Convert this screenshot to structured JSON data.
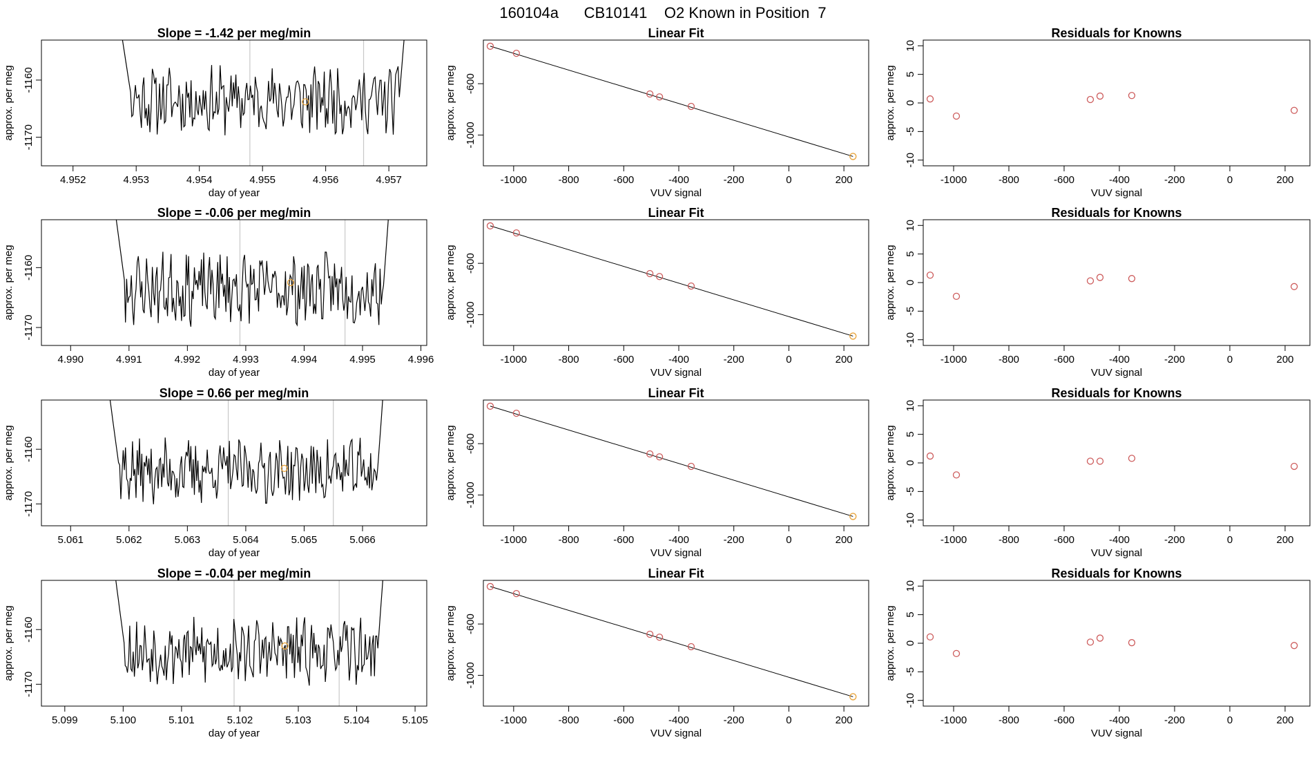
{
  "page_title": "160104a      CB10141    O2 Known in Position  7",
  "colors": {
    "trace": "#000000",
    "marker_orange": "#e8a33a",
    "point_red": "#cd5c5c",
    "vline": "#c8c8c8",
    "fit_line": "#000000"
  },
  "chart_data": [
    {
      "type": "line",
      "title": "Slope =  -1.42  per meg/min",
      "xlabel": "day of year",
      "ylabel": "approx. per meg",
      "xlim": [
        4.9515,
        4.9576
      ],
      "ylim": [
        -1175,
        -1153
      ],
      "xticks": [
        "4.952",
        "4.953",
        "4.954",
        "4.955",
        "4.956",
        "4.957"
      ],
      "xtick_values": [
        4.952,
        4.953,
        4.954,
        4.955,
        4.956,
        4.957
      ],
      "yticks": [
        "-1160",
        "-1170"
      ],
      "ytick_values": [
        -1160,
        -1170
      ],
      "x_start": 4.9527,
      "x_end": 4.9573,
      "baseline": -1163.5,
      "seed": 11,
      "vlines": [
        4.9548,
        4.9566
      ],
      "marker": {
        "x": 4.95568,
        "y": -1163.8
      }
    },
    {
      "type": "scatter",
      "title": "Linear Fit",
      "xlabel": "VUV signal",
      "ylabel": "approx. per meg",
      "xlim": [
        -1110,
        290
      ],
      "ylim": [
        -1240,
        -260
      ],
      "xticks": [
        "-1000",
        "-800",
        "-600",
        "-400",
        "-200",
        "0",
        "200"
      ],
      "xtick_values": [
        -1000,
        -800,
        -600,
        -400,
        -200,
        0,
        200
      ],
      "yticks": [
        "-600",
        "-1000"
      ],
      "ytick_values": [
        -600,
        -1000
      ],
      "points_x": [
        -1085,
        -990,
        -505,
        -470,
        -355
      ],
      "points_y": [
        -308,
        -363,
        -680,
        -703,
        -777
      ],
      "highlight": {
        "x": 233,
        "y": -1167
      },
      "fit_line": {
        "x1": -1085,
        "y1": -308,
        "x2": 233,
        "y2": -1167
      }
    },
    {
      "type": "scatter",
      "title": "Residuals for Knowns",
      "xlabel": "VUV signal",
      "ylabel": "approx. per meg",
      "xlim": [
        -1110,
        290
      ],
      "ylim": [
        -11,
        11
      ],
      "xticks": [
        "-1000",
        "-800",
        "-600",
        "-400",
        "-200",
        "0",
        "200"
      ],
      "xtick_values": [
        -1000,
        -800,
        -600,
        -400,
        -200,
        0,
        200
      ],
      "yticks": [
        "10",
        "5",
        "0",
        "-5",
        "-10"
      ],
      "ytick_values": [
        10,
        5,
        0,
        -5,
        -10
      ],
      "points_x": [
        -1085,
        -990,
        -505,
        -470,
        -355,
        233
      ],
      "points_y": [
        0.7,
        -2.3,
        0.6,
        1.2,
        1.3,
        -1.3
      ]
    },
    {
      "type": "line",
      "title": "Slope =  -0.06  per meg/min",
      "xlabel": "day of year",
      "ylabel": "approx. per meg",
      "xlim": [
        4.9895,
        4.9961
      ],
      "ylim": [
        -1173,
        -1152
      ],
      "xticks": [
        "4.990",
        "4.991",
        "4.992",
        "4.993",
        "4.994",
        "4.995",
        "4.996"
      ],
      "xtick_values": [
        4.99,
        4.991,
        4.992,
        4.993,
        4.994,
        4.995,
        4.996
      ],
      "yticks": [
        "-1160",
        "-1170"
      ],
      "ytick_values": [
        -1160,
        -1170
      ],
      "x_start": 4.9907,
      "x_end": 4.9955,
      "baseline": -1163.5,
      "seed": 23,
      "vlines": [
        4.9929,
        4.9947
      ],
      "marker": {
        "x": 4.99377,
        "y": -1162.5
      }
    },
    {
      "type": "scatter",
      "title": "Linear Fit",
      "xlabel": "VUV signal",
      "ylabel": "approx. per meg",
      "xlim": [
        -1110,
        290
      ],
      "ylim": [
        -1240,
        -260
      ],
      "xticks": [
        "-1000",
        "-800",
        "-600",
        "-400",
        "-200",
        "0",
        "200"
      ],
      "xtick_values": [
        -1000,
        -800,
        -600,
        -400,
        -200,
        0,
        200
      ],
      "yticks": [
        "-600",
        "-1000"
      ],
      "ytick_values": [
        -600,
        -1000
      ],
      "points_x": [
        -1085,
        -990,
        -505,
        -470,
        -355
      ],
      "points_y": [
        -308,
        -363,
        -680,
        -703,
        -777
      ],
      "highlight": {
        "x": 233,
        "y": -1167
      },
      "fit_line": {
        "x1": -1085,
        "y1": -308,
        "x2": 233,
        "y2": -1167
      }
    },
    {
      "type": "scatter",
      "title": "Residuals for Knowns",
      "xlabel": "VUV signal",
      "ylabel": "approx. per meg",
      "xlim": [
        -1110,
        290
      ],
      "ylim": [
        -11,
        11
      ],
      "xticks": [
        "-1000",
        "-800",
        "-600",
        "-400",
        "-200",
        "0",
        "200"
      ],
      "xtick_values": [
        -1000,
        -800,
        -600,
        -400,
        -200,
        0,
        200
      ],
      "yticks": [
        "10",
        "5",
        "0",
        "-5",
        "-10"
      ],
      "ytick_values": [
        10,
        5,
        0,
        -5,
        -10
      ],
      "points_x": [
        -1085,
        -990,
        -505,
        -470,
        -355,
        233
      ],
      "points_y": [
        1.3,
        -2.4,
        0.3,
        0.9,
        0.7,
        -0.7
      ]
    },
    {
      "type": "line",
      "title": "Slope =  0.66  per meg/min",
      "xlabel": "day of year",
      "ylabel": "approx. per meg",
      "xlim": [
        5.0605,
        5.0671
      ],
      "ylim": [
        -1174,
        -1151
      ],
      "xticks": [
        "5.061",
        "5.062",
        "5.063",
        "5.064",
        "5.065",
        "5.066"
      ],
      "xtick_values": [
        5.061,
        5.062,
        5.063,
        5.064,
        5.065,
        5.066
      ],
      "yticks": [
        "-1160",
        "-1170"
      ],
      "ytick_values": [
        -1160,
        -1170
      ],
      "x_start": 5.0616,
      "x_end": 5.0664,
      "baseline": -1164,
      "seed": 37,
      "vlines": [
        5.0637,
        5.0655
      ],
      "marker": {
        "x": 5.06466,
        "y": -1163.5
      }
    },
    {
      "type": "scatter",
      "title": "Linear Fit",
      "xlabel": "VUV signal",
      "ylabel": "approx. per meg",
      "xlim": [
        -1110,
        290
      ],
      "ylim": [
        -1240,
        -260
      ],
      "xticks": [
        "-1000",
        "-800",
        "-600",
        "-400",
        "-200",
        "0",
        "200"
      ],
      "xtick_values": [
        -1000,
        -800,
        -600,
        -400,
        -200,
        0,
        200
      ],
      "yticks": [
        "-600",
        "-1000"
      ],
      "ytick_values": [
        -600,
        -1000
      ],
      "points_x": [
        -1085,
        -990,
        -505,
        -470,
        -355
      ],
      "points_y": [
        -308,
        -363,
        -680,
        -703,
        -777
      ],
      "highlight": {
        "x": 233,
        "y": -1167
      },
      "fit_line": {
        "x1": -1085,
        "y1": -308,
        "x2": 233,
        "y2": -1167
      }
    },
    {
      "type": "scatter",
      "title": "Residuals for Knowns",
      "xlabel": "VUV signal",
      "ylabel": "approx. per meg",
      "xlim": [
        -1110,
        290
      ],
      "ylim": [
        -11,
        11
      ],
      "xticks": [
        "-1000",
        "-800",
        "-600",
        "-400",
        "-200",
        "0",
        "200"
      ],
      "xtick_values": [
        -1000,
        -800,
        -600,
        -400,
        -200,
        0,
        200
      ],
      "yticks": [
        "10",
        "5",
        "0",
        "-5",
        "-10"
      ],
      "ytick_values": [
        10,
        5,
        0,
        -5,
        -10
      ],
      "points_x": [
        -1085,
        -990,
        -505,
        -470,
        -355,
        233
      ],
      "points_y": [
        1.2,
        -2.1,
        0.3,
        0.3,
        0.8,
        -0.6
      ]
    },
    {
      "type": "line",
      "title": "Slope =  -0.04  per meg/min",
      "xlabel": "day of year",
      "ylabel": "approx. per meg",
      "xlim": [
        5.0986,
        5.1052
      ],
      "ylim": [
        -1174,
        -1151
      ],
      "xticks": [
        "5.099",
        "5.100",
        "5.101",
        "5.102",
        "5.103",
        "5.104",
        "5.105"
      ],
      "xtick_values": [
        5.099,
        5.1,
        5.101,
        5.102,
        5.103,
        5.104,
        5.105
      ],
      "yticks": [
        "-1160",
        "-1170"
      ],
      "ytick_values": [
        -1160,
        -1170
      ],
      "x_start": 5.0998,
      "x_end": 5.1045,
      "baseline": -1164,
      "seed": 53,
      "vlines": [
        5.1019,
        5.1037
      ],
      "marker": {
        "x": 5.10277,
        "y": -1163
      }
    },
    {
      "type": "scatter",
      "title": "Linear Fit",
      "xlabel": "VUV signal",
      "ylabel": "approx. per meg",
      "xlim": [
        -1110,
        290
      ],
      "ylim": [
        -1240,
        -260
      ],
      "xticks": [
        "-1000",
        "-800",
        "-600",
        "-400",
        "-200",
        "0",
        "200"
      ],
      "xtick_values": [
        -1000,
        -800,
        -600,
        -400,
        -200,
        0,
        200
      ],
      "yticks": [
        "-600",
        "-1000"
      ],
      "ytick_values": [
        -600,
        -1000
      ],
      "points_x": [
        -1085,
        -990,
        -505,
        -470,
        -355
      ],
      "points_y": [
        -308,
        -363,
        -680,
        -703,
        -777
      ],
      "highlight": {
        "x": 233,
        "y": -1167
      },
      "fit_line": {
        "x1": -1085,
        "y1": -308,
        "x2": 233,
        "y2": -1167
      }
    },
    {
      "type": "scatter",
      "title": "Residuals for Knowns",
      "xlabel": "VUV signal",
      "ylabel": "approx. per meg",
      "xlim": [
        -1110,
        290
      ],
      "ylim": [
        -11,
        11
      ],
      "xticks": [
        "-1000",
        "-800",
        "-600",
        "-400",
        "-200",
        "0",
        "200"
      ],
      "xtick_values": [
        -1000,
        -800,
        -600,
        -400,
        -200,
        0,
        200
      ],
      "yticks": [
        "10",
        "5",
        "0",
        "-5",
        "-10"
      ],
      "ytick_values": [
        10,
        5,
        0,
        -5,
        -10
      ],
      "points_x": [
        -1085,
        -990,
        -505,
        -470,
        -355,
        233
      ],
      "points_y": [
        1.1,
        -1.8,
        0.2,
        0.9,
        0.1,
        -0.4
      ]
    }
  ]
}
